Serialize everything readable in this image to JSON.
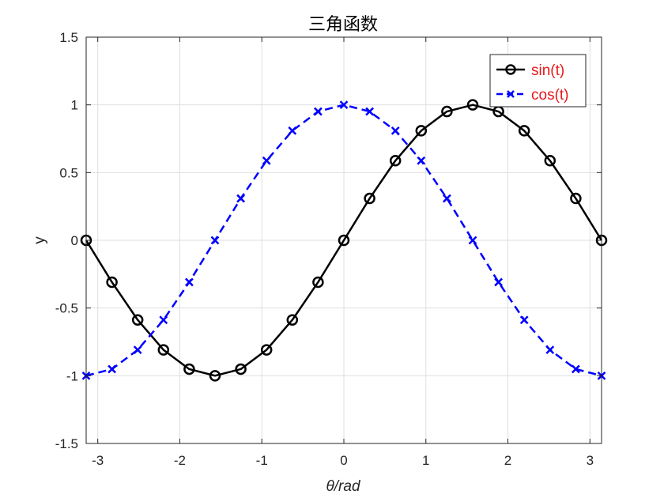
{
  "chart_data": {
    "type": "line",
    "title": "三角函数",
    "xlabel": "θ/rad",
    "ylabel": "y",
    "xlim": [
      -3.14159,
      3.14159
    ],
    "ylim": [
      -1.5,
      1.5
    ],
    "xticks": [
      -3,
      -2,
      -1,
      0,
      1,
      2,
      3
    ],
    "xtick_labels": [
      "-3",
      "-2",
      "-1",
      "0",
      "1",
      "2",
      "3"
    ],
    "yticks": [
      -1.5,
      -1,
      -0.5,
      0,
      0.5,
      1,
      1.5
    ],
    "ytick_labels": [
      "-1.5",
      "-1",
      "-0.5",
      "0",
      "0.5",
      "1",
      "1.5"
    ],
    "grid": true,
    "legend_position": "top-right",
    "x": [
      -3.1416,
      -2.8274,
      -2.5133,
      -2.1991,
      -1.885,
      -1.5708,
      -1.2566,
      -0.9425,
      -0.6283,
      -0.3142,
      0,
      0.3142,
      0.6283,
      0.9425,
      1.2566,
      1.5708,
      1.885,
      2.1991,
      2.5133,
      2.8274,
      3.1416
    ],
    "series": [
      {
        "name": "sin(t)",
        "color": "#000000",
        "line_style": "solid",
        "marker": "circle",
        "values": [
          0,
          -0.309,
          -0.588,
          -0.809,
          -0.951,
          -1,
          -0.951,
          -0.809,
          -0.588,
          -0.309,
          0,
          0.309,
          0.588,
          0.809,
          0.951,
          1,
          0.951,
          0.809,
          0.588,
          0.309,
          0
        ]
      },
      {
        "name": "cos(t)",
        "color": "#0000ff",
        "line_style": "dashed",
        "marker": "x",
        "values": [
          -1,
          -0.951,
          -0.809,
          -0.588,
          -0.309,
          0,
          0.309,
          0.588,
          0.809,
          0.951,
          1,
          0.951,
          0.809,
          0.588,
          0.309,
          0,
          -0.309,
          -0.588,
          -0.809,
          -0.951,
          -1
        ]
      }
    ]
  }
}
